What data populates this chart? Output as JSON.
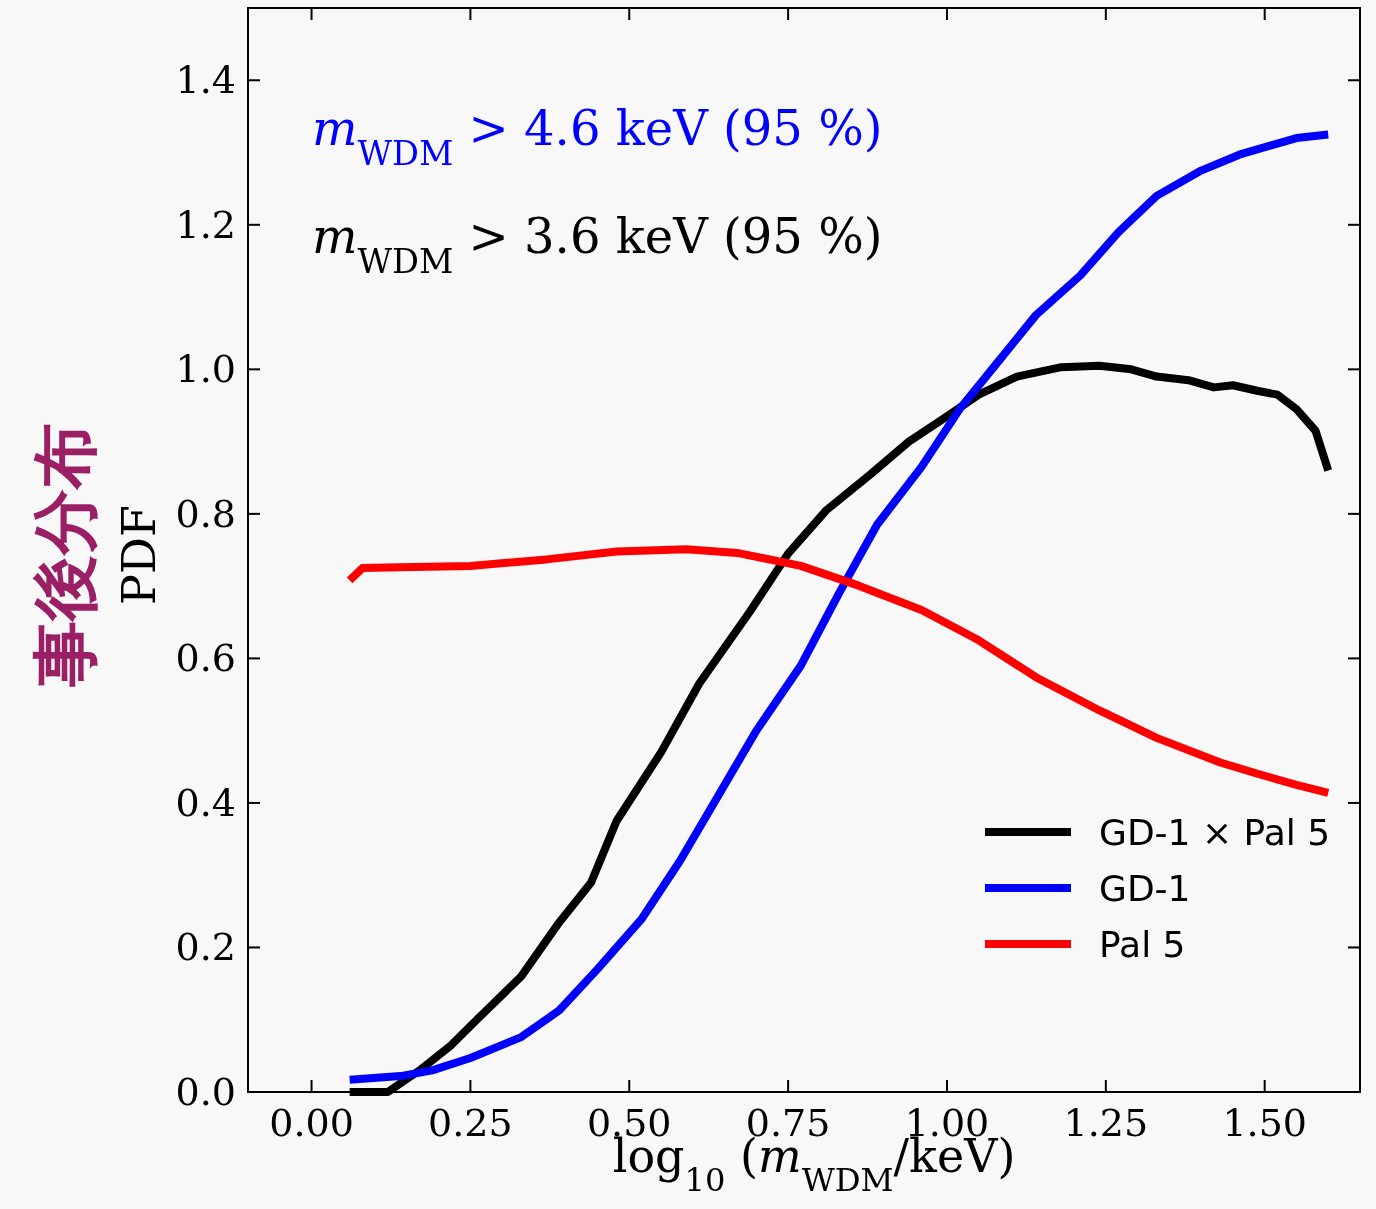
{
  "chart_data": {
    "type": "line",
    "xlabel": "log$_{10}$ (*m*$_{WDM}$/keV)",
    "ylabel": "PDF",
    "annotations": [
      "事後分布",
      "*m*$_{WDM}$ > 4.6 keV (95 %)",
      "*m*$_{WDM}$ > 3.6 keV (95 %)"
    ],
    "xlim": [
      -0.1,
      1.65
    ],
    "ylim": [
      0,
      1.5
    ],
    "xticks": [
      {
        "value": 0,
        "label": "0.00"
      },
      {
        "value": 0.25,
        "label": "0.25"
      },
      {
        "value": 0.5,
        "label": "0.50"
      },
      {
        "value": 0.75,
        "label": "0.75"
      },
      {
        "value": 1,
        "label": "1.00"
      },
      {
        "value": 1.25,
        "label": "1.25"
      },
      {
        "value": 1.5,
        "label": "1.50"
      }
    ],
    "yticks": [
      {
        "value": 0,
        "label": "0.0"
      },
      {
        "value": 0.2,
        "label": "0.2"
      },
      {
        "value": 0.4,
        "label": "0.4"
      },
      {
        "value": 0.6,
        "label": "0.6"
      },
      {
        "value": 0.8,
        "label": "0.8"
      },
      {
        "value": 1,
        "label": "1.0"
      },
      {
        "value": 1.2,
        "label": "1.2"
      },
      {
        "value": 1.4,
        "label": "1.4"
      }
    ],
    "legend": "bottom right",
    "grid": false,
    "series": [
      {
        "name": "GD-1 × Pal 5",
        "color": "#000000",
        "x": [
          0.06,
          0.12,
          0.17,
          0.22,
          0.26,
          0.33,
          0.39,
          0.44,
          0.48,
          0.55,
          0.61,
          0.69,
          0.75,
          0.81,
          0.88,
          0.94,
          1.0,
          1.05,
          1.11,
          1.18,
          1.24,
          1.29,
          1.33,
          1.38,
          1.42,
          1.45,
          1.49,
          1.52,
          1.55,
          1.58,
          1.6
        ],
        "values": [
          0.0,
          0.0,
          0.03,
          0.065,
          0.1,
          0.16,
          0.235,
          0.29,
          0.375,
          0.47,
          0.565,
          0.665,
          0.745,
          0.805,
          0.855,
          0.9,
          0.935,
          0.965,
          0.99,
          1.003,
          1.005,
          1.0,
          0.99,
          0.985,
          0.975,
          0.978,
          0.97,
          0.965,
          0.945,
          0.915,
          0.86
        ]
      },
      {
        "name": "GD-1",
        "color": "#0000ff",
        "x": [
          0.06,
          0.14,
          0.19,
          0.25,
          0.33,
          0.39,
          0.45,
          0.52,
          0.58,
          0.64,
          0.7,
          0.77,
          0.83,
          0.89,
          0.96,
          1.02,
          1.08,
          1.14,
          1.21,
          1.27,
          1.33,
          1.4,
          1.46,
          1.51,
          1.55,
          1.6
        ],
        "values": [
          0.017,
          0.022,
          0.03,
          0.047,
          0.076,
          0.113,
          0.17,
          0.24,
          0.32,
          0.41,
          0.5,
          0.59,
          0.69,
          0.785,
          0.865,
          0.945,
          1.01,
          1.075,
          1.13,
          1.19,
          1.24,
          1.275,
          1.297,
          1.31,
          1.32,
          1.325
        ]
      },
      {
        "name": "Pal 5",
        "color": "#ff0000",
        "x": [
          0.06,
          0.08,
          0.14,
          0.25,
          0.37,
          0.48,
          0.59,
          0.67,
          0.77,
          0.86,
          0.96,
          1.05,
          1.14,
          1.24,
          1.33,
          1.43,
          1.49,
          1.55,
          1.6
        ],
        "values": [
          0.708,
          0.725,
          0.726,
          0.728,
          0.737,
          0.748,
          0.751,
          0.746,
          0.728,
          0.701,
          0.667,
          0.625,
          0.574,
          0.528,
          0.49,
          0.456,
          0.44,
          0.425,
          0.414
        ]
      }
    ]
  }
}
